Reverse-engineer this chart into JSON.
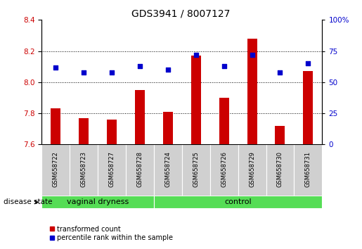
{
  "title": "GDS3941 / 8007127",
  "samples": [
    "GSM658722",
    "GSM658723",
    "GSM658727",
    "GSM658728",
    "GSM658724",
    "GSM658725",
    "GSM658726",
    "GSM658729",
    "GSM658730",
    "GSM658731"
  ],
  "groups": [
    "vaginal dryness",
    "vaginal dryness",
    "vaginal dryness",
    "vaginal dryness",
    "control",
    "control",
    "control",
    "control",
    "control",
    "control"
  ],
  "transformed_count": [
    7.83,
    7.77,
    7.76,
    7.95,
    7.81,
    8.17,
    7.9,
    8.28,
    7.72,
    8.07
  ],
  "percentile_rank": [
    62,
    58,
    58,
    63,
    60,
    72,
    63,
    72,
    58,
    65
  ],
  "ylim_left": [
    7.6,
    8.4
  ],
  "ylim_right": [
    0,
    100
  ],
  "yticks_left": [
    7.6,
    7.8,
    8.0,
    8.2,
    8.4
  ],
  "yticks_right": [
    0,
    25,
    50,
    75,
    100
  ],
  "bar_color": "#cc0000",
  "dot_color": "#0000cc",
  "bar_bottom": 7.6,
  "group_bg_color": "#55dd55",
  "title_fontsize": 10,
  "tick_fontsize": 7.5,
  "sample_fontsize": 6,
  "group_fontsize": 8,
  "legend_fontsize": 7,
  "dotted_grid_lines": [
    7.8,
    8.0,
    8.2
  ],
  "left_tick_color": "#cc0000",
  "right_tick_color": "#0000cc",
  "gray_box_color": "#d0d0d0",
  "vaginal_span": [
    0,
    3
  ],
  "control_span": [
    4,
    9
  ]
}
